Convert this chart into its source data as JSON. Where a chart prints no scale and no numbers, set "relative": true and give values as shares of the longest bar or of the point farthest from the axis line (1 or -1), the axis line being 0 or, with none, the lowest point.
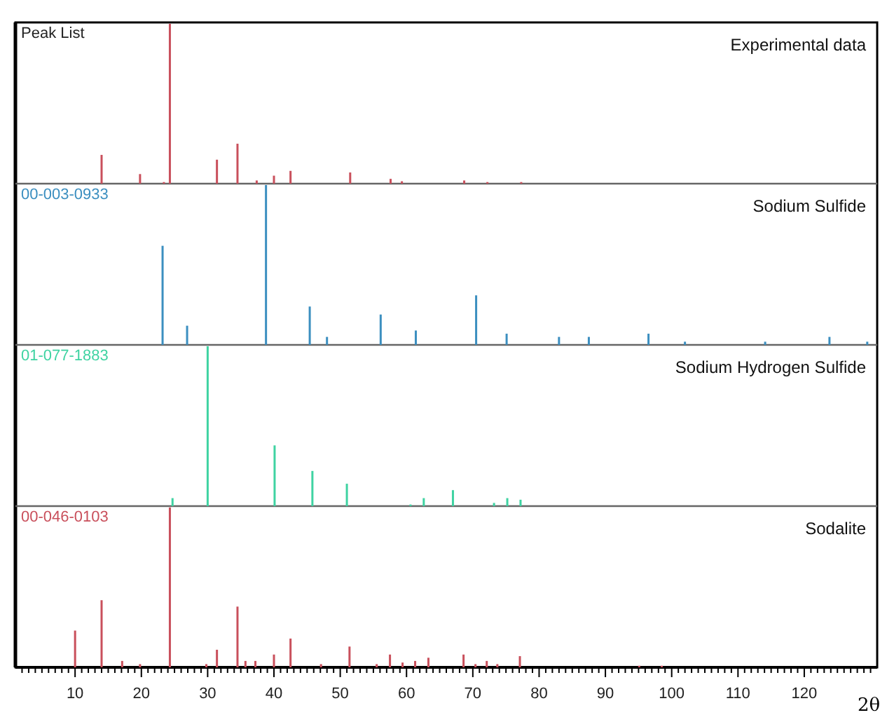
{
  "chart_data": [
    {
      "type": "bar",
      "title": "Experimental data",
      "subtitle": "Peak List",
      "relative": true,
      "xlim": [
        1,
        131
      ],
      "tick_labels": false,
      "series": [
        {
          "color": "#c9505c",
          "x": [
            14.0,
            19.8,
            23.4,
            24.3,
            31.4,
            34.5,
            37.4,
            40.0,
            42.5,
            51.5,
            57.6,
            59.3,
            68.7,
            72.2,
            77.3
          ],
          "values": [
            0.18,
            0.06,
            0.01,
            1,
            0.15,
            0.25,
            0.02,
            0.05,
            0.08,
            0.07,
            0.03,
            0.015,
            0.02,
            0.01,
            0.01
          ]
        }
      ]
    },
    {
      "type": "bar",
      "title": "Sodium Sulfide",
      "subtitle": "00-003-0933",
      "relative": true,
      "xlim": [
        1,
        131
      ],
      "tick_labels": false,
      "series": [
        {
          "color": "#3c8fc0",
          "x": [
            23.2,
            26.9,
            38.8,
            45.4,
            48.0,
            56.1,
            61.4,
            70.5,
            75.1,
            83.0,
            87.5,
            96.5,
            102.0,
            114.1,
            123.8,
            129.5
          ],
          "values": [
            0.62,
            0.12,
            1,
            0.24,
            0.05,
            0.19,
            0.09,
            0.31,
            0.07,
            0.05,
            0.05,
            0.07,
            0.02,
            0.02,
            0.05,
            0.02
          ]
        }
      ]
    },
    {
      "type": "bar",
      "title": "Sodium Hydrogen Sulfide",
      "subtitle": "01-077-1883",
      "relative": true,
      "xlim": [
        1,
        131
      ],
      "tick_labels": false,
      "series": [
        {
          "color": "#3fd3a2",
          "x": [
            24.7,
            30.0,
            40.1,
            45.8,
            51.0,
            60.6,
            62.6,
            67.0,
            73.2,
            75.2,
            77.2
          ],
          "values": [
            0.05,
            1,
            0.38,
            0.22,
            0.14,
            0.01,
            0.05,
            0.1,
            0.02,
            0.05,
            0.04
          ]
        }
      ]
    },
    {
      "type": "bar",
      "title": "Sodalite",
      "subtitle": "00-046-0103",
      "relative": true,
      "xlim": [
        1,
        131
      ],
      "tick_labels": "x",
      "xlabel": "2θ",
      "xticks": [
        {
          "value": 2,
          "label": null
        },
        {
          "value": 3,
          "label": null
        },
        {
          "value": 4,
          "label": null
        },
        {
          "value": 5,
          "label": null
        },
        {
          "value": 6,
          "label": null
        },
        {
          "value": 7,
          "label": null
        },
        {
          "value": 8,
          "label": null
        },
        {
          "value": 9,
          "label": null
        },
        10,
        {
          "value": 11,
          "label": null
        },
        {
          "value": 12,
          "label": null
        },
        {
          "value": 13,
          "label": null
        },
        {
          "value": 14,
          "label": null
        },
        {
          "value": 15,
          "label": null
        },
        {
          "value": 16,
          "label": null
        },
        {
          "value": 17,
          "label": null
        },
        {
          "value": 18,
          "label": null
        },
        {
          "value": 19,
          "label": null
        },
        20,
        {
          "value": 21,
          "label": null
        },
        {
          "value": 22,
          "label": null
        },
        {
          "value": 23,
          "label": null
        },
        {
          "value": 24,
          "label": null
        },
        {
          "value": 25,
          "label": null
        },
        {
          "value": 26,
          "label": null
        },
        {
          "value": 27,
          "label": null
        },
        {
          "value": 28,
          "label": null
        },
        {
          "value": 29,
          "label": null
        },
        30,
        {
          "value": 31,
          "label": null
        },
        {
          "value": 32,
          "label": null
        },
        {
          "value": 33,
          "label": null
        },
        {
          "value": 34,
          "label": null
        },
        {
          "value": 35,
          "label": null
        },
        {
          "value": 36,
          "label": null
        },
        {
          "value": 37,
          "label": null
        },
        {
          "value": 38,
          "label": null
        },
        {
          "value": 39,
          "label": null
        },
        40,
        {
          "value": 41,
          "label": null
        },
        {
          "value": 42,
          "label": null
        },
        {
          "value": 43,
          "label": null
        },
        {
          "value": 44,
          "label": null
        },
        {
          "value": 45,
          "label": null
        },
        {
          "value": 46,
          "label": null
        },
        {
          "value": 47,
          "label": null
        },
        {
          "value": 48,
          "label": null
        },
        {
          "value": 49,
          "label": null
        },
        50,
        {
          "value": 51,
          "label": null
        },
        {
          "value": 52,
          "label": null
        },
        {
          "value": 53,
          "label": null
        },
        {
          "value": 54,
          "label": null
        },
        {
          "value": 55,
          "label": null
        },
        {
          "value": 56,
          "label": null
        },
        {
          "value": 57,
          "label": null
        },
        {
          "value": 58,
          "label": null
        },
        {
          "value": 59,
          "label": null
        },
        60,
        {
          "value": 61,
          "label": null
        },
        {
          "value": 62,
          "label": null
        },
        {
          "value": 63,
          "label": null
        },
        {
          "value": 64,
          "label": null
        },
        {
          "value": 65,
          "label": null
        },
        {
          "value": 66,
          "label": null
        },
        {
          "value": 67,
          "label": null
        },
        {
          "value": 68,
          "label": null
        },
        {
          "value": 69,
          "label": null
        },
        70,
        {
          "value": 71,
          "label": null
        },
        {
          "value": 72,
          "label": null
        },
        {
          "value": 73,
          "label": null
        },
        {
          "value": 74,
          "label": null
        },
        {
          "value": 75,
          "label": null
        },
        {
          "value": 76,
          "label": null
        },
        {
          "value": 77,
          "label": null
        },
        {
          "value": 78,
          "label": null
        },
        {
          "value": 79,
          "label": null
        },
        80,
        {
          "value": 81,
          "label": null
        },
        {
          "value": 82,
          "label": null
        },
        {
          "value": 83,
          "label": null
        },
        {
          "value": 84,
          "label": null
        },
        {
          "value": 85,
          "label": null
        },
        {
          "value": 86,
          "label": null
        },
        {
          "value": 87,
          "label": null
        },
        {
          "value": 88,
          "label": null
        },
        {
          "value": 89,
          "label": null
        },
        90,
        {
          "value": 91,
          "label": null
        },
        {
          "value": 92,
          "label": null
        },
        {
          "value": 93,
          "label": null
        },
        {
          "value": 94,
          "label": null
        },
        {
          "value": 95,
          "label": null
        },
        {
          "value": 96,
          "label": null
        },
        {
          "value": 97,
          "label": null
        },
        {
          "value": 98,
          "label": null
        },
        {
          "value": 99,
          "label": null
        },
        100,
        {
          "value": 101,
          "label": null
        },
        {
          "value": 102,
          "label": null
        },
        {
          "value": 103,
          "label": null
        },
        {
          "value": 104,
          "label": null
        },
        {
          "value": 105,
          "label": null
        },
        {
          "value": 106,
          "label": null
        },
        {
          "value": 107,
          "label": null
        },
        {
          "value": 108,
          "label": null
        },
        {
          "value": 109,
          "label": null
        },
        110,
        {
          "value": 111,
          "label": null
        },
        {
          "value": 112,
          "label": null
        },
        {
          "value": 113,
          "label": null
        },
        {
          "value": 114,
          "label": null
        },
        {
          "value": 115,
          "label": null
        },
        {
          "value": 116,
          "label": null
        },
        {
          "value": 117,
          "label": null
        },
        {
          "value": 118,
          "label": null
        },
        {
          "value": 119,
          "label": null
        },
        120,
        {
          "value": 121,
          "label": null
        },
        {
          "value": 122,
          "label": null
        },
        {
          "value": 123,
          "label": null
        },
        {
          "value": 124,
          "label": null
        },
        {
          "value": 125,
          "label": null
        },
        {
          "value": 126,
          "label": null
        },
        {
          "value": 127,
          "label": null
        },
        {
          "value": 128,
          "label": null
        },
        {
          "value": 129,
          "label": null
        },
        {
          "value": 130,
          "label": null
        }
      ],
      "series": [
        {
          "color": "#c9505c",
          "x": [
            10.0,
            14.0,
            17.1,
            19.8,
            24.3,
            29.8,
            31.4,
            34.5,
            35.7,
            37.2,
            40.0,
            42.5,
            47.1,
            51.4,
            55.5,
            57.5,
            59.4,
            61.3,
            63.3,
            68.6,
            70.4,
            72.1,
            73.7,
            77.1,
            95.1,
            98.5
          ],
          "values": [
            0.23,
            0.42,
            0.04,
            0.02,
            1,
            0.02,
            0.11,
            0.38,
            0.04,
            0.04,
            0.08,
            0.18,
            0.02,
            0.13,
            0.02,
            0.08,
            0.03,
            0.04,
            0.06,
            0.08,
            0.02,
            0.04,
            0.02,
            0.07,
            0.01,
            0.01
          ]
        }
      ]
    }
  ]
}
